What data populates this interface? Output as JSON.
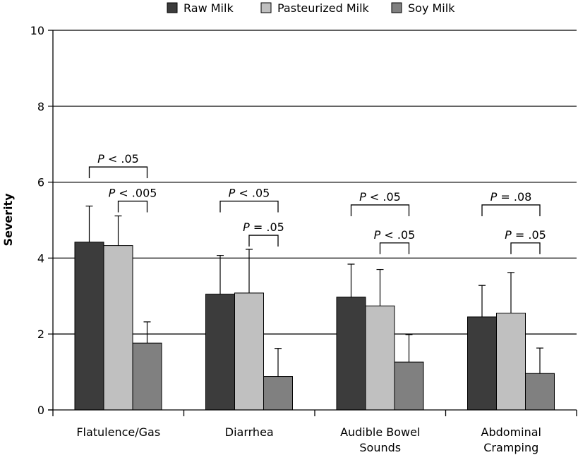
{
  "chart_data": {
    "type": "bar",
    "title": "",
    "xlabel": "",
    "ylabel": "Severity",
    "ylim": [
      0,
      10
    ],
    "yticks": [
      0,
      2,
      4,
      6,
      8,
      10
    ],
    "grid": "horizontal",
    "legend_position": "top",
    "categories": [
      [
        "Flatulence/Gas"
      ],
      [
        "Diarrhea"
      ],
      [
        "Audible Bowel",
        "Sounds"
      ],
      [
        "Abdominal",
        "Cramping"
      ]
    ],
    "series": [
      {
        "name": "Raw Milk",
        "color": "#3c3c3c",
        "values": [
          4.42,
          3.05,
          2.97,
          2.45
        ],
        "errors": [
          0.95,
          1.02,
          0.87,
          0.83
        ]
      },
      {
        "name": "Pasteurized Milk",
        "color": "#c0c0c0",
        "values": [
          4.33,
          3.08,
          2.74,
          2.55
        ],
        "errors": [
          0.78,
          1.15,
          0.96,
          1.07
        ]
      },
      {
        "name": "Soy Milk",
        "color": "#808080",
        "values": [
          1.76,
          0.88,
          1.26,
          0.96
        ],
        "errors": [
          0.56,
          0.74,
          0.72,
          0.67
        ]
      }
    ],
    "annotations": [
      {
        "category": 0,
        "from_series": 0,
        "to_series": 2,
        "level": 6.4,
        "prefix": "P",
        "rest": " < .05"
      },
      {
        "category": 0,
        "from_series": 1,
        "to_series": 2,
        "level": 5.5,
        "prefix": "P",
        "rest": " < .005"
      },
      {
        "category": 1,
        "from_series": 0,
        "to_series": 2,
        "level": 5.5,
        "prefix": "P",
        "rest": " < .05"
      },
      {
        "category": 1,
        "from_series": 1,
        "to_series": 2,
        "level": 4.6,
        "prefix": "P",
        "rest": " = .05"
      },
      {
        "category": 2,
        "from_series": 0,
        "to_series": 2,
        "level": 5.4,
        "prefix": "P",
        "rest": " < .05"
      },
      {
        "category": 2,
        "from_series": 1,
        "to_series": 2,
        "level": 4.4,
        "prefix": "P",
        "rest": " < .05"
      },
      {
        "category": 3,
        "from_series": 0,
        "to_series": 2,
        "level": 5.4,
        "prefix": "P",
        "rest": " = .08"
      },
      {
        "category": 3,
        "from_series": 1,
        "to_series": 2,
        "level": 4.4,
        "prefix": "P",
        "rest": " = .05"
      }
    ]
  }
}
